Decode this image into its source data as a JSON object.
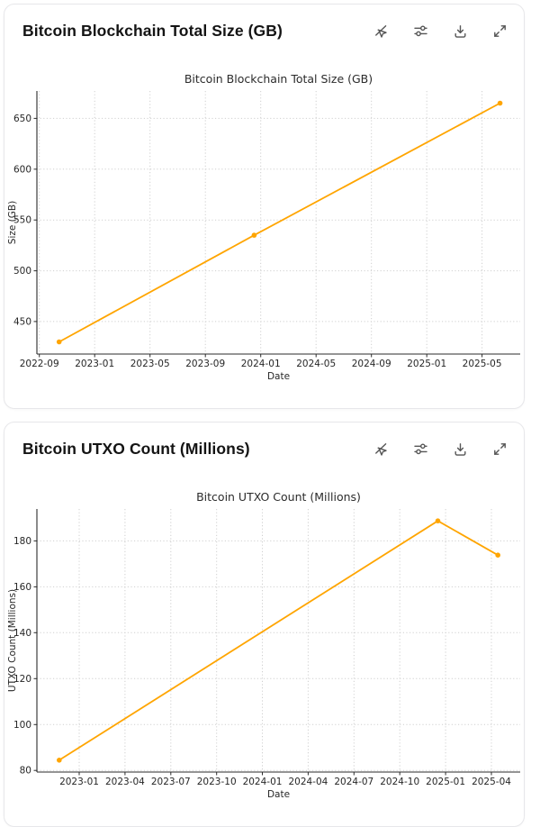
{
  "colors": {
    "line": "#FFA500",
    "grid": "#cfcfcf",
    "spine": "#2b2b2b",
    "icon": "#555555",
    "card_border": "#e7e7ea"
  },
  "cards": [
    {
      "title": "Bitcoin Blockchain Total Size (GB)",
      "toolbar_icons": [
        "interaction-off",
        "sliders",
        "download",
        "expand"
      ]
    },
    {
      "title": "Bitcoin UTXO Count (Millions)",
      "toolbar_icons": [
        "interaction-off",
        "sliders",
        "download",
        "expand"
      ]
    }
  ],
  "chart_data": [
    {
      "type": "line",
      "title": "Bitcoin Blockchain Total Size (GB)",
      "xlabel": "Date",
      "ylabel": "Size (GB)",
      "grid": "dotted",
      "legend": "none",
      "marker": "circle",
      "points": [
        {
          "date": "2022-10-14",
          "value": 430
        },
        {
          "date": "2023-12-17",
          "value": 535
        },
        {
          "date": "2025-06-10",
          "value": 665
        }
      ],
      "xticks": [
        "2022-09",
        "2023-01",
        "2023-05",
        "2023-09",
        "2024-01",
        "2024-05",
        "2024-09",
        "2025-01",
        "2025-05"
      ],
      "yticks": [
        450,
        500,
        550,
        600,
        650
      ],
      "xlim": [
        "2022-08-26",
        "2025-07-24"
      ],
      "ylim": [
        418,
        677
      ]
    },
    {
      "type": "line",
      "title": "Bitcoin UTXO Count (Millions)",
      "xlabel": "Date",
      "ylabel": "UTXO Count (Millions)",
      "grid": "dotted",
      "legend": "none",
      "marker": "circle",
      "points": [
        {
          "date": "2022-11-22",
          "value": 84.5
        },
        {
          "date": "2024-12-16",
          "value": 188.7
        },
        {
          "date": "2025-04-14",
          "value": 173.8
        }
      ],
      "xticks": [
        "2023-01",
        "2023-04",
        "2023-07",
        "2023-10",
        "2024-01",
        "2024-04",
        "2024-07",
        "2024-10",
        "2025-01",
        "2025-04"
      ],
      "yticks": [
        80,
        100,
        120,
        140,
        160,
        180
      ],
      "xlim": [
        "2022-10-08",
        "2025-05-28"
      ],
      "ylim": [
        79.3,
        193.9
      ]
    }
  ]
}
